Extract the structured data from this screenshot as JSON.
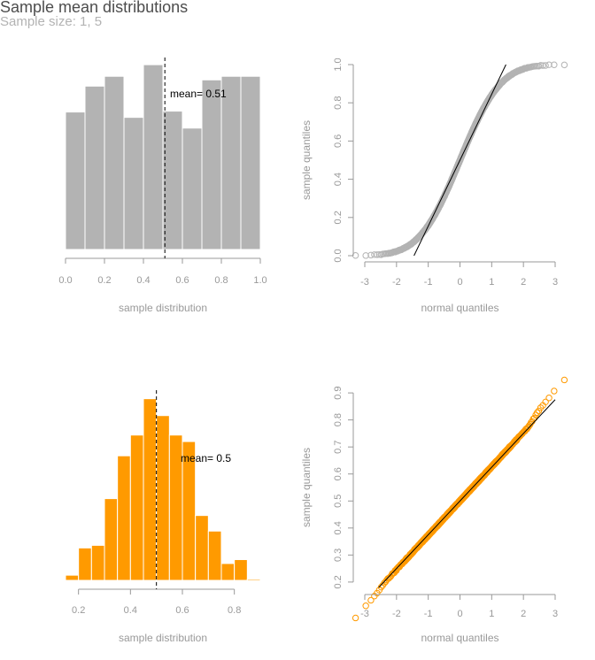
{
  "title": "Sample mean distributions",
  "subtitle": "Sample size: 1, 5",
  "colors": {
    "gray": "#b3b3b3",
    "orange": "#ff9a00",
    "axis": "#999999"
  },
  "chart_data": [
    {
      "type": "bar",
      "name": "histogram-size-1",
      "color": "#b3b3b3",
      "bin_edges": [
        0.0,
        0.1,
        0.2,
        0.3,
        0.4,
        0.5,
        0.6,
        0.7,
        0.8,
        0.9,
        1.0
      ],
      "values": [
        154,
        183,
        194,
        148,
        207,
        155,
        136,
        190,
        194,
        194
      ],
      "y_range": [
        0,
        220
      ],
      "mean_line": 0.51,
      "mean_label": "mean= 0.51",
      "xlim": [
        0.0,
        1.0
      ],
      "x_ticks": [
        "0.0",
        "0.2",
        "0.4",
        "0.6",
        "0.8",
        "1.0"
      ],
      "xlabel": "sample distribution"
    },
    {
      "type": "scatter",
      "name": "qq-size-1",
      "color": "#b3b3b3",
      "xlim": [
        -3,
        3
      ],
      "ylim": [
        0,
        1
      ],
      "x_ticks": [
        "-3",
        "-2",
        "-1",
        "0",
        "1",
        "2",
        "3"
      ],
      "y_ticks": [
        "0.0",
        "0.2",
        "0.4",
        "0.6",
        "0.8",
        "1.0"
      ],
      "xlabel": "normal quantiles",
      "ylabel": "sample quantiles",
      "ref_line": {
        "intercept": 0.5,
        "slope": 0.345
      },
      "distribution": "uniform",
      "dist_params": [
        0,
        1
      ],
      "n_points": 1000
    },
    {
      "type": "bar",
      "name": "histogram-size-5",
      "color": "#ff9a00",
      "bin_edges": [
        0.15,
        0.2,
        0.25,
        0.3,
        0.35,
        0.4,
        0.45,
        0.5,
        0.55,
        0.6,
        0.65,
        0.7,
        0.75,
        0.8,
        0.85,
        0.9
      ],
      "values": [
        4,
        25,
        27,
        63,
        96,
        112,
        140,
        127,
        112,
        107,
        50,
        38,
        13,
        16,
        1
      ],
      "y_range": [
        0,
        150
      ],
      "mean_line": 0.5,
      "mean_label": "mean= 0.5",
      "xlim": [
        0.15,
        0.9
      ],
      "x_ticks": [
        "0.2",
        "0.4",
        "0.6",
        "0.8"
      ],
      "xlabel": "sample distribution"
    },
    {
      "type": "scatter",
      "name": "qq-size-5",
      "color": "#ff9a00",
      "xlim": [
        -3,
        3
      ],
      "ylim": [
        0.18,
        0.92
      ],
      "x_ticks": [
        "-3",
        "-2",
        "-1",
        "0",
        "1",
        "2",
        "3"
      ],
      "y_ticks": [
        "0.2",
        "0.3",
        "0.4",
        "0.5",
        "0.6",
        "0.7",
        "0.8",
        "0.9"
      ],
      "xlabel": "normal quantiles",
      "ylabel": "sample quantiles",
      "ref_line": {
        "intercept": 0.5,
        "slope": 0.125
      },
      "distribution": "normal",
      "dist_params": [
        0.5,
        0.127
      ],
      "n_points": 1000
    }
  ]
}
